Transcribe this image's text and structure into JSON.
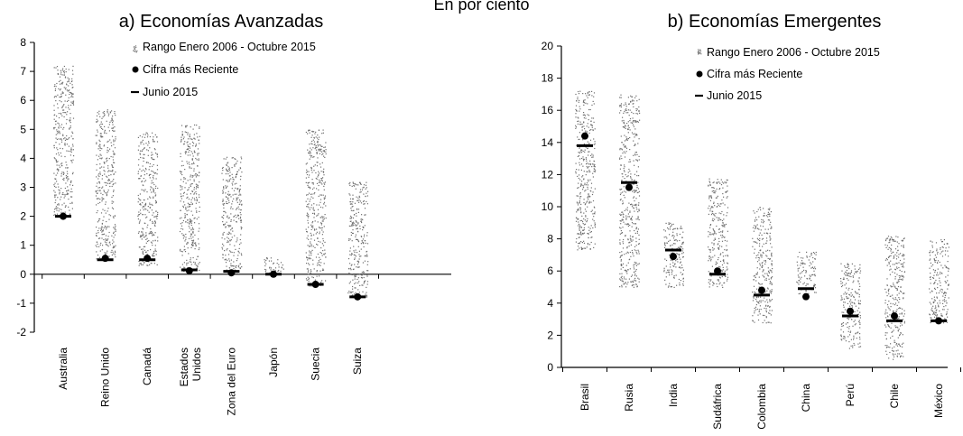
{
  "figure": {
    "subtitle": "En por ciento"
  },
  "chart_data": [
    {
      "type": "range-dot",
      "title": "a) Economías Avanzadas",
      "ylim": [
        -2,
        8
      ],
      "yticks": [
        -2,
        -1,
        0,
        1,
        2,
        3,
        4,
        5,
        6,
        7,
        8
      ],
      "zero_line": true,
      "legend": {
        "placement": "top-right",
        "range": "Rango Enero 2006 - Octubre 2015",
        "latest": "Cifra más Reciente",
        "june": "Junio 2015"
      },
      "categories": [
        "Australia",
        "Reino Unido",
        "Canadá",
        "Estados Unidos",
        "Zona del Euro",
        "Japón",
        "Suecia",
        "Suiza"
      ],
      "category_lines": [
        [
          "Australia"
        ],
        [
          "Reino Unido"
        ],
        [
          "Canadá"
        ],
        [
          "Estados",
          "Unidos"
        ],
        [
          "Zona del Euro"
        ],
        [
          "Japón"
        ],
        [
          "Suecia"
        ],
        [
          "Suiza"
        ]
      ],
      "range_low": [
        2.0,
        0.5,
        0.3,
        0.1,
        0.0,
        0.0,
        -0.4,
        -0.8
      ],
      "range_high": [
        7.2,
        5.7,
        4.9,
        5.2,
        4.1,
        0.6,
        5.0,
        3.2
      ],
      "latest": [
        2.0,
        0.55,
        0.55,
        0.12,
        0.05,
        0.0,
        -0.35,
        -0.78
      ],
      "june_2015": [
        2.0,
        0.5,
        0.5,
        0.15,
        0.1,
        0.0,
        -0.35,
        -0.78
      ]
    },
    {
      "type": "range-dot",
      "title": "b) Economías Emergentes",
      "ylim": [
        0,
        20
      ],
      "yticks": [
        0,
        2,
        4,
        6,
        8,
        10,
        12,
        14,
        16,
        18,
        20
      ],
      "zero_line": false,
      "legend": {
        "placement": "top-right",
        "range": "Rango Enero 2006 - Octubre 2015",
        "latest": "Cifra más Reciente",
        "june": "Junio 2015"
      },
      "categories": [
        "Brasil",
        "Rusia",
        "India",
        "Sudáfrica",
        "Colombia",
        "China",
        "Perú",
        "Chile",
        "México"
      ],
      "category_lines": [
        [
          "Brasil"
        ],
        [
          "Rusia"
        ],
        [
          "India"
        ],
        [
          "Sudáfrica"
        ],
        [
          "Colombia"
        ],
        [
          "China"
        ],
        [
          "Perú"
        ],
        [
          "Chile"
        ],
        [
          "México"
        ]
      ],
      "range_low": [
        7.3,
        5.0,
        5.0,
        5.0,
        2.8,
        4.6,
        1.2,
        0.5,
        2.8
      ],
      "range_high": [
        17.3,
        17.0,
        9.1,
        11.8,
        10.0,
        7.2,
        6.5,
        8.2,
        8.0
      ],
      "latest": [
        14.4,
        11.2,
        6.9,
        6.0,
        4.8,
        4.4,
        3.5,
        3.2,
        2.9
      ],
      "june_2015": [
        13.8,
        11.5,
        7.3,
        5.8,
        4.5,
        4.9,
        3.2,
        2.9,
        2.9
      ]
    }
  ]
}
